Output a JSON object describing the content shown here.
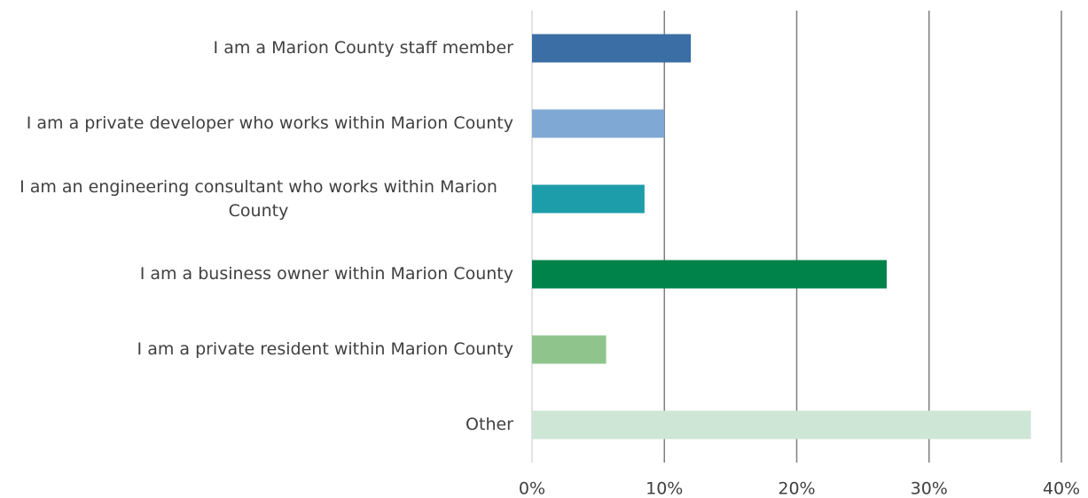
{
  "chart_data": {
    "type": "bar",
    "orientation": "horizontal",
    "categories": [
      "I am a Marion County staff member",
      "I am a private developer who works within Marion County",
      "I am an engineering consultant who works within Marion County",
      "I am a business owner within Marion County",
      "I am a private resident within Marion County",
      "Other"
    ],
    "values": [
      12,
      10,
      8.5,
      26.8,
      5.6,
      37.7
    ],
    "colors": [
      "#3b6ea5",
      "#80a8d4",
      "#1d9da9",
      "#00834a",
      "#8fc58c",
      "#cee6d5"
    ],
    "xlim": [
      0,
      40
    ],
    "xticks": [
      {
        "value": 0,
        "label": "0%"
      },
      {
        "value": 10,
        "label": "10%"
      },
      {
        "value": 20,
        "label": "20%"
      },
      {
        "value": 30,
        "label": "30%"
      },
      {
        "value": 40,
        "label": "40%"
      }
    ],
    "grid": true
  }
}
